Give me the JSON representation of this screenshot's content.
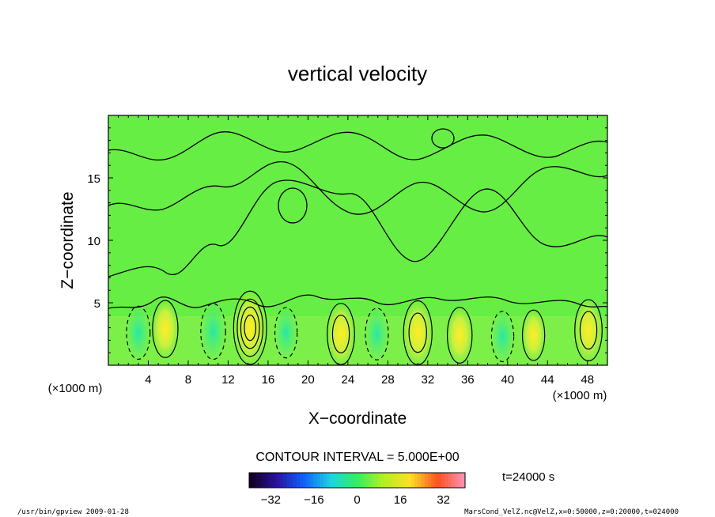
{
  "chart_data": {
    "type": "heatmap",
    "title": "vertical velocity",
    "xlabel": "X−coordinate",
    "ylabel": "Z−coordinate",
    "x_unit_left": "(×1000 m)",
    "x_unit_right": "(×1000 m)",
    "xlim": [
      0,
      50
    ],
    "ylim": [
      0,
      20
    ],
    "x_ticks": [
      {
        "v": 4,
        "label": "4"
      },
      {
        "v": 8,
        "label": "8"
      },
      {
        "v": 12,
        "label": "12"
      },
      {
        "v": 16,
        "label": "16"
      },
      {
        "v": 20,
        "label": "20"
      },
      {
        "v": 24,
        "label": "24"
      },
      {
        "v": 28,
        "label": "28"
      },
      {
        "v": 32,
        "label": "32"
      },
      {
        "v": 36,
        "label": "36"
      },
      {
        "v": 40,
        "label": "40"
      },
      {
        "v": 44,
        "label": "44"
      },
      {
        "v": 48,
        "label": "48"
      }
    ],
    "y_ticks": [
      {
        "v": 5,
        "label": "5"
      },
      {
        "v": 10,
        "label": "10"
      },
      {
        "v": 15,
        "label": "15"
      }
    ],
    "contour_interval_text": "CONTOUR INTERVAL = 5.000E+00",
    "time_text": "t=24000 s",
    "colorbar": {
      "range": [
        -40,
        40
      ],
      "ticks": [
        {
          "v": -32,
          "label": "−32"
        },
        {
          "v": -16,
          "label": "−16"
        },
        {
          "v": 0,
          "label": "0"
        },
        {
          "v": 16,
          "label": "16"
        },
        {
          "v": 32,
          "label": "32"
        }
      ]
    },
    "cells": [
      {
        "x": 3.0,
        "z": 2.6,
        "w": -6
      },
      {
        "x": 5.7,
        "z": 2.9,
        "w": 9
      },
      {
        "x": 10.5,
        "z": 2.7,
        "w": -8
      },
      {
        "x": 14.2,
        "z": 3.0,
        "w": 21
      },
      {
        "x": 17.8,
        "z": 2.6,
        "w": -4
      },
      {
        "x": 23.3,
        "z": 2.5,
        "w": 12
      },
      {
        "x": 26.9,
        "z": 2.5,
        "w": -5
      },
      {
        "x": 31.0,
        "z": 2.6,
        "w": 14
      },
      {
        "x": 35.2,
        "z": 2.4,
        "w": 8
      },
      {
        "x": 39.5,
        "z": 2.3,
        "w": -4
      },
      {
        "x": 42.6,
        "z": 2.4,
        "w": 4
      },
      {
        "x": 48.1,
        "z": 2.8,
        "w": 12
      }
    ],
    "grid": true,
    "colormap": "rainbow"
  },
  "footer": {
    "left": "/usr/bin/gpview   2009-01-28",
    "right": "MarsCond_VelZ.nc@VelZ,x=0:50000,z=0:20000,t=024000"
  }
}
